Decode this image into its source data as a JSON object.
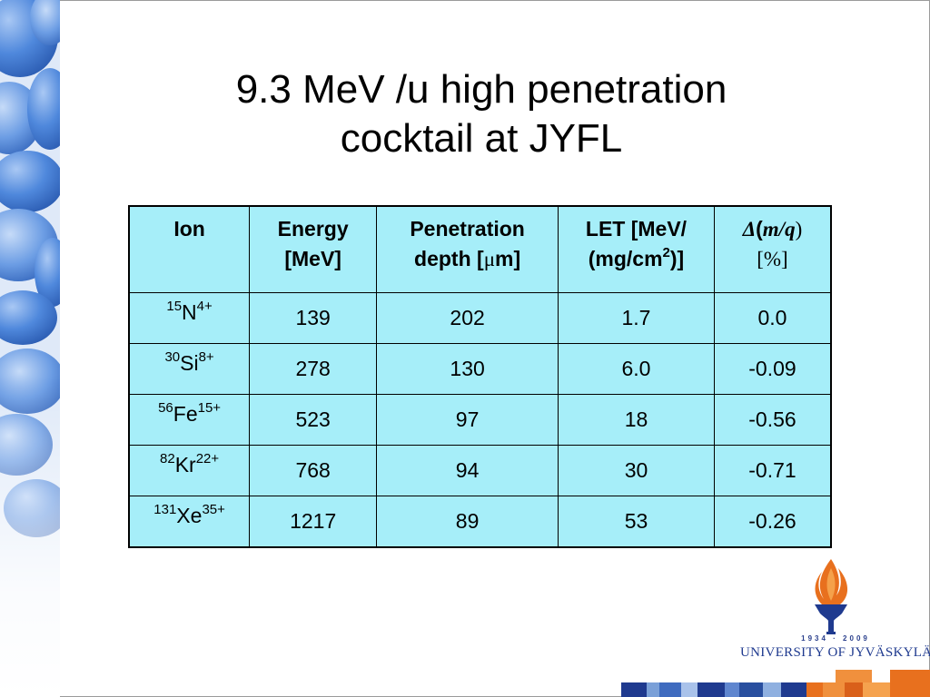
{
  "slide": {
    "title_line1": "9.3 MeV /u high penetration",
    "title_line2": "cocktail at JYFL"
  },
  "table": {
    "headers": {
      "ion": "Ion",
      "energy_line1": "Energy",
      "energy_line2": "[MeV]",
      "pen_line1": "Penetration",
      "pen_line2_pre": "depth [",
      "pen_line2_mu": "μ",
      "pen_line2_post": "m]",
      "let_line1": "LET [MeV/",
      "let_line2_pre": "(mg/cm",
      "let_line2_sup": "2",
      "let_line2_post": ")]",
      "dmq_delta": "Δ",
      "dmq_paren": "(",
      "dmq_mq": "m/q",
      "dmq_close": ")",
      "dmq_unit": "[%]"
    },
    "rows": [
      {
        "mass": "15",
        "symbol": "N",
        "charge": "4+",
        "energy": "139",
        "penetration": "202",
        "let": "1.7",
        "dmq": "0.0"
      },
      {
        "mass": "30",
        "symbol": "Si",
        "charge": "8+",
        "energy": "278",
        "penetration": "130",
        "let": "6.0",
        "dmq": "-0.09"
      },
      {
        "mass": "56",
        "symbol": "Fe",
        "charge": "15+",
        "energy": "523",
        "penetration": "97",
        "let": "18",
        "dmq": "-0.56"
      },
      {
        "mass": "82",
        "symbol": "Kr",
        "charge": "22+",
        "energy": "768",
        "penetration": "94",
        "let": "30",
        "dmq": "-0.71"
      },
      {
        "mass": "131",
        "symbol": "Xe",
        "charge": "35+",
        "energy": "1217",
        "penetration": "89",
        "let": "53",
        "dmq": "-0.26"
      }
    ]
  },
  "logo": {
    "years": "1934 · 2009",
    "name": "UNIVERSITY OF JYVÄSKYLÄ",
    "icon": "torch-flame-icon"
  },
  "colors": {
    "table_bg": "#a6eef9",
    "logo_blue": "#1f3a8f",
    "flame_orange": "#e8701e",
    "pebble_blue": "#3f7fd6"
  }
}
